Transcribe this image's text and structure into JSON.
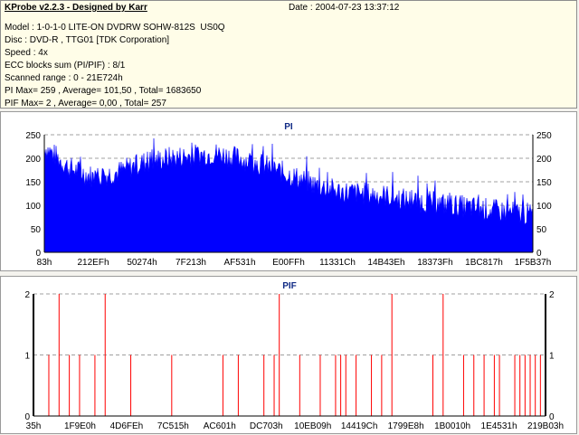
{
  "info": {
    "title": "KProbe v2.2.3 - Designed by Karr",
    "date": "Date : 2004-07-23 13:37:12",
    "lines": [
      "Model : 1-0-1-0 LITE-ON DVDRW SOHW-812S  US0Q",
      "Disc : DVD-R , TTG01 [TDK Corporation]",
      "Speed : 4x",
      "ECC blocks sum (PI/PIF) : 8/1",
      "Scanned range : 0 - 21E724h",
      "PI Max= 259 , Average= 101,50 , Total= 1683650",
      "PIF Max= 2 , Average= 0,00 , Total= 257"
    ]
  },
  "colors": {
    "pi": "#0000ff",
    "pif": "#ff0000",
    "grid": "#a0a0a0"
  },
  "chart_data": [
    {
      "type": "area",
      "title": "PI",
      "ylim": [
        0,
        250
      ],
      "yticks": [
        0,
        50,
        100,
        150,
        200,
        250
      ],
      "xticks": [
        "83h",
        "212EFh",
        "50274h",
        "7F213h",
        "AF531h",
        "E00FFh",
        "11331Ch",
        "14B43Eh",
        "18373Fh",
        "1BC817h",
        "1F5B37h"
      ],
      "grid": true,
      "series": [
        {
          "x": [
            0,
            0.05,
            0.1,
            0.15,
            0.2,
            0.25,
            0.3,
            0.35,
            0.4,
            0.45,
            0.5,
            0.55,
            0.6,
            0.65,
            0.7,
            0.75,
            0.8,
            0.85,
            0.9,
            0.95,
            1.0
          ],
          "y": [
            225,
            180,
            160,
            170,
            190,
            200,
            205,
            210,
            200,
            185,
            165,
            145,
            130,
            125,
            120,
            110,
            105,
            98,
            92,
            85,
            80
          ]
        }
      ]
    },
    {
      "type": "bar",
      "title": "PIF",
      "ylim": [
        0,
        2
      ],
      "yticks": [
        0,
        1,
        2
      ],
      "xticks": [
        "35h",
        "1F9E0h",
        "4D6FEh",
        "7C515h",
        "AC601h",
        "DC703h",
        "10EB09h",
        "14419Ch",
        "1799E8h",
        "1B0010h",
        "1E4531h",
        "219B03h"
      ],
      "grid": true,
      "series": [
        {
          "x": [
            0.03,
            0.05,
            0.07,
            0.09,
            0.12,
            0.14,
            0.19,
            0.27,
            0.37,
            0.4,
            0.45,
            0.47,
            0.48,
            0.52,
            0.56,
            0.59,
            0.6,
            0.61,
            0.63,
            0.66,
            0.68,
            0.7,
            0.78,
            0.8,
            0.84,
            0.86,
            0.88,
            0.9,
            0.91,
            0.94,
            0.95,
            0.96,
            0.97,
            0.98,
            0.99
          ],
          "y": [
            1,
            2,
            1,
            1,
            1,
            2,
            1,
            1,
            1,
            1,
            1,
            1,
            2,
            1,
            1,
            1,
            1,
            1,
            1,
            1,
            1,
            2,
            1,
            2,
            1,
            1,
            1,
            1,
            1,
            1,
            1,
            1,
            1,
            1,
            1
          ]
        }
      ]
    }
  ]
}
